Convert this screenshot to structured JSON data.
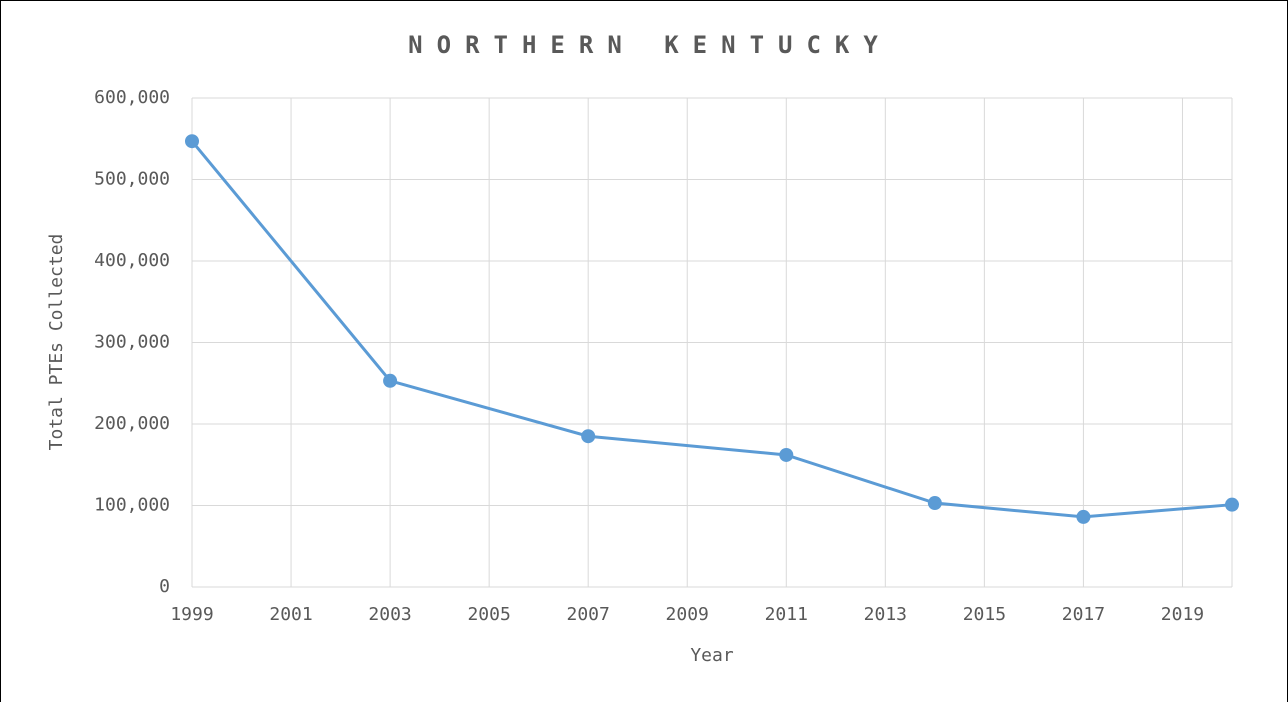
{
  "chart_data": {
    "type": "line",
    "title": "NORTHERN KENTUCKY",
    "x_label": "Year",
    "y_label": "Total PTEs Collected",
    "x": [
      1999,
      2003,
      2007,
      2011,
      2014,
      2017,
      2020
    ],
    "series": [
      {
        "name": "Total PTEs Collected",
        "color": "#5b9bd5",
        "values": [
          547000,
          253000,
          185000,
          162000,
          103000,
          86000,
          101000
        ]
      }
    ],
    "xlim": [
      1999,
      2020
    ],
    "xticks": [
      1999,
      2001,
      2003,
      2005,
      2007,
      2009,
      2011,
      2013,
      2015,
      2017,
      2019
    ],
    "ylim": [
      0,
      600000
    ],
    "yticks": [
      0,
      {
        "value": 100000,
        "label": "100,000"
      },
      {
        "value": 200000,
        "label": "200,000"
      },
      {
        "value": 300000,
        "label": "300,000"
      },
      {
        "value": 400000,
        "label": "400,000"
      },
      {
        "value": 500000,
        "label": "500,000"
      },
      {
        "value": 600000,
        "label": "600,000"
      }
    ],
    "grid": true
  }
}
